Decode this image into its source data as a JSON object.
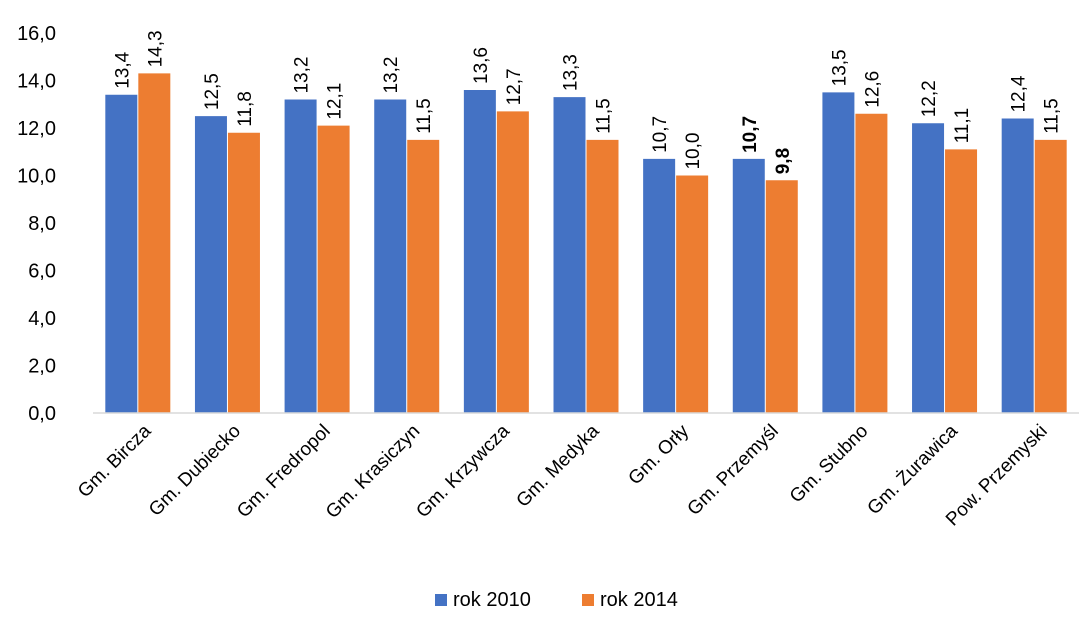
{
  "chart_data": {
    "type": "bar",
    "categories": [
      "Gm. Bircza",
      "Gm. Dubiecko",
      "Gm. Fredropol",
      "Gm. Krasiczyn",
      "Gm. Krzywcza",
      "Gm. Medyka",
      "Gm. Orły",
      "Gm. Przemyśl",
      "Gm. Stubno",
      "Gm. Żurawica",
      "Pow. Przemyski"
    ],
    "series": [
      {
        "name": "rok 2010",
        "color": "#4472C4",
        "values": [
          13.4,
          12.5,
          13.2,
          13.2,
          13.6,
          13.3,
          10.7,
          10.7,
          13.5,
          12.2,
          12.4
        ],
        "labels": [
          "13,4",
          "12,5",
          "13,2",
          "13,2",
          "13,6",
          "13,3",
          "10,7",
          "10,7",
          "13,5",
          "12,2",
          "12,4"
        ]
      },
      {
        "name": "rok 2014",
        "color": "#ED7D31",
        "values": [
          14.3,
          11.8,
          12.1,
          11.5,
          12.7,
          11.5,
          10.0,
          9.8,
          12.6,
          11.1,
          11.5
        ],
        "labels": [
          "14,3",
          "11,8",
          "12,1",
          "11,5",
          "12,7",
          "11,5",
          "10,0",
          "9,8",
          "12,6",
          "11,1",
          "11,5"
        ]
      }
    ],
    "bold_label_category": "Gm. Przemyśl",
    "y_ticks": [
      "0,0",
      "2,0",
      "4,0",
      "6,0",
      "8,0",
      "10,0",
      "12,0",
      "14,0",
      "16,0"
    ],
    "ylim": [
      0,
      16
    ],
    "grid": false,
    "legend_position": "bottom"
  }
}
